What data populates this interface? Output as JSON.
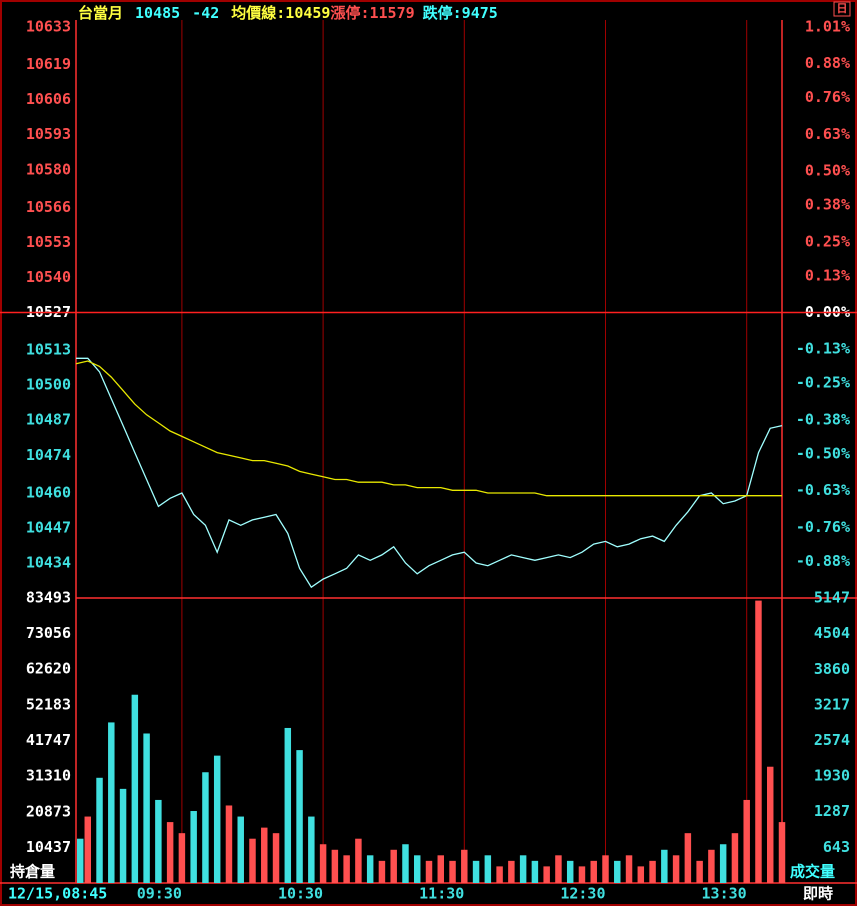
{
  "chart_data": [
    {
      "type": "line",
      "header": {
        "symbol": "台當月",
        "price": 10485,
        "change": -42,
        "avg_label": "均價線:",
        "avg": 10459,
        "limit_up_label": "漲停:",
        "limit_up": 11579,
        "limit_down_label": "跌停:",
        "limit_down": 9475
      },
      "icon_label": "日",
      "x": [
        "08:45",
        "08:50",
        "08:55",
        "09:00",
        "09:05",
        "09:10",
        "09:15",
        "09:20",
        "09:25",
        "09:30",
        "09:35",
        "09:40",
        "09:45",
        "09:50",
        "09:55",
        "10:00",
        "10:05",
        "10:10",
        "10:15",
        "10:20",
        "10:25",
        "10:30",
        "10:35",
        "10:40",
        "10:45",
        "10:50",
        "10:55",
        "11:00",
        "11:05",
        "11:10",
        "11:15",
        "11:20",
        "11:25",
        "11:30",
        "11:35",
        "11:40",
        "11:45",
        "11:50",
        "11:55",
        "12:00",
        "12:05",
        "12:10",
        "12:15",
        "12:20",
        "12:25",
        "12:30",
        "12:35",
        "12:40",
        "12:45",
        "12:50",
        "12:55",
        "13:00",
        "13:05",
        "13:10",
        "13:15",
        "13:20",
        "13:25",
        "13:30",
        "13:35",
        "13:40",
        "13:45"
      ],
      "series": [
        {
          "color": "#a0ffff",
          "values": [
            10510,
            10510,
            10505,
            10495,
            10485,
            10475,
            10465,
            10455,
            10458,
            10460,
            10452,
            10448,
            10438,
            10450,
            10448,
            10450,
            10451,
            10452,
            10445,
            10432,
            10425,
            10428,
            10430,
            10432,
            10437,
            10435,
            10437,
            10440,
            10434,
            10430,
            10433,
            10435,
            10437,
            10438,
            10434,
            10433,
            10435,
            10437,
            10436,
            10435,
            10436,
            10437,
            10436,
            10438,
            10441,
            10442,
            10440,
            10441,
            10443,
            10444,
            10442,
            10448,
            10453,
            10459,
            10460,
            10456,
            10457,
            10459,
            10475,
            10484,
            10485
          ]
        },
        {
          "color": "#e8e800",
          "values": [
            10508,
            10509,
            10507,
            10503,
            10498,
            10493,
            10489,
            10486,
            10483,
            10481,
            10479,
            10477,
            10475,
            10474,
            10473,
            10472,
            10472,
            10471,
            10470,
            10468,
            10467,
            10466,
            10465,
            10465,
            10464,
            10464,
            10464,
            10463,
            10463,
            10462,
            10462,
            10462,
            10461,
            10461,
            10461,
            10460,
            10460,
            10460,
            10460,
            10460,
            10459,
            10459,
            10459,
            10459,
            10459,
            10459,
            10459,
            10459,
            10459,
            10459,
            10459,
            10459,
            10459,
            10459,
            10459,
            10459,
            10459,
            10459,
            10459,
            10459,
            10459
          ]
        }
      ],
      "ylim": [
        10421,
        10633
      ],
      "yticks": [
        10434,
        10447,
        10460,
        10474,
        10487,
        10500,
        10513,
        10527,
        10540,
        10553,
        10566,
        10580,
        10593,
        10606,
        10619,
        10633
      ],
      "y2lim": [
        -1.01,
        1.01
      ],
      "y2ticks": [
        {
          "value": -0.88,
          "label": "-0.88%"
        },
        {
          "value": -0.76,
          "label": "-0.76%"
        },
        {
          "value": -0.63,
          "label": "-0.63%"
        },
        {
          "value": -0.5,
          "label": "-0.50%"
        },
        {
          "value": -0.38,
          "label": "-0.38%"
        },
        {
          "value": -0.25,
          "label": "-0.25%"
        },
        {
          "value": -0.13,
          "label": "-0.13%"
        },
        {
          "value": 0,
          "label": "0.00%"
        },
        {
          "value": 0.13,
          "label": "0.13%"
        },
        {
          "value": 0.25,
          "label": "0.25%"
        },
        {
          "value": 0.38,
          "label": "0.38%"
        },
        {
          "value": 0.5,
          "label": "0.50%"
        },
        {
          "value": 0.63,
          "label": "0.63%"
        },
        {
          "value": 0.76,
          "label": "0.76%"
        },
        {
          "value": 0.88,
          "label": "0.88%"
        },
        {
          "value": 1.01,
          "label": "1.01%"
        }
      ],
      "zero_line": true
    },
    {
      "type": "bar",
      "ylabel": "持倉量",
      "y2label": "成交量",
      "up_color": "#ff5050",
      "down_color": "#40e0e0",
      "series": [
        {
          "axis": "y2",
          "values": [
            800,
            1200,
            1900,
            2900,
            1700,
            3400,
            2700,
            1500,
            1100,
            900,
            1300,
            2000,
            2300,
            1400,
            1200,
            800,
            1000,
            900,
            2800,
            2400,
            1200,
            700,
            600,
            500,
            800,
            500,
            400,
            600,
            700,
            500,
            400,
            500,
            400,
            600,
            400,
            500,
            300,
            400,
            500,
            400,
            300,
            500,
            400,
            300,
            400,
            500,
            400,
            500,
            300,
            400,
            600,
            500,
            900,
            400,
            600,
            700,
            900,
            1500,
            5100,
            2100,
            1100
          ]
        }
      ],
      "ylim": [
        0,
        83493
      ],
      "yticks": [
        10437,
        20873,
        31310,
        41747,
        52183,
        62620,
        73056,
        83493
      ],
      "y2lim": [
        0,
        5147
      ],
      "y2ticks": [
        643,
        1287,
        1930,
        2574,
        3217,
        3860,
        4504,
        5147
      ],
      "xticks": [
        "09:30",
        "10:30",
        "11:30",
        "12:30",
        "13:30"
      ],
      "date_label": "12/15,08:45",
      "live_label": "即時",
      "grid": true
    }
  ]
}
